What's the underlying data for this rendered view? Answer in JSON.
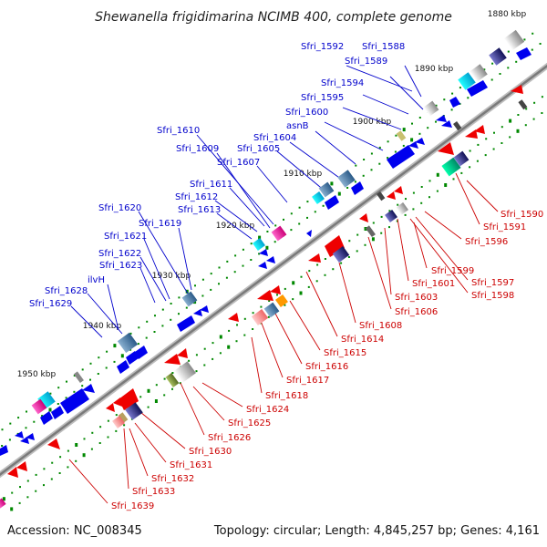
{
  "title": "Shewanella frigidimarina NCIMB 400, complete genome",
  "footer": {
    "accession": "Accession: NC_008345",
    "summary": "Topology: circular; Length: 4,845,257 bp; Genes: 4,161"
  },
  "colors": {
    "forward": "#0000ee",
    "reverse": "#ee0000",
    "backbone": "#808080",
    "ticks": "#008800",
    "blue_label": "#0000cc",
    "red_label": "#cc0000"
  },
  "kbp_marks": [
    {
      "label": "1880 kbp",
      "pos": 0
    },
    {
      "label": "1890 kbp",
      "pos": 10
    },
    {
      "label": "1900 kbp",
      "pos": 20
    },
    {
      "label": "1910 kbp",
      "pos": 30
    },
    {
      "label": "1920 kbp",
      "pos": 40
    },
    {
      "label": "1930 kbp",
      "pos": 50
    },
    {
      "label": "1940 kbp",
      "pos": 60
    },
    {
      "label": "1950 kbp",
      "pos": 70
    }
  ],
  "forward_labels": [
    {
      "name": "Sfri_1592",
      "pos": 7
    },
    {
      "name": "Sfri_1588",
      "pos": 3
    },
    {
      "name": "Sfri_1589",
      "pos": 5
    },
    {
      "name": "Sfri_1594",
      "pos": 12
    },
    {
      "name": "Sfri_1595",
      "pos": 14
    },
    {
      "name": "Sfri_1600",
      "pos": 17
    },
    {
      "name": "asnB",
      "pos": 18
    },
    {
      "name": "Sfri_1604",
      "pos": 26
    },
    {
      "name": "Sfri_1605",
      "pos": 29
    },
    {
      "name": "Sfri_1610",
      "pos": 28
    },
    {
      "name": "Sfri_1609",
      "pos": 30
    },
    {
      "name": "Sfri_1607",
      "pos": 32
    },
    {
      "name": "Sfri_1611",
      "pos": 36
    },
    {
      "name": "Sfri_1612",
      "pos": 37
    },
    {
      "name": "Sfri_1613",
      "pos": 38
    },
    {
      "name": "Sfri_1620",
      "pos": 45
    },
    {
      "name": "Sfri_1619",
      "pos": 46
    },
    {
      "name": "Sfri_1621",
      "pos": 50
    },
    {
      "name": "Sfri_1622",
      "pos": 52
    },
    {
      "name": "Sfri_1623",
      "pos": 53
    },
    {
      "name": "Sfri_1628",
      "pos": 57
    },
    {
      "name": "ilvH",
      "pos": 59
    },
    {
      "name": "Sfri_1629",
      "pos": 60
    }
  ],
  "reverse_labels": [
    {
      "name": "Sfri_1590",
      "pos": 9
    },
    {
      "name": "Sfri_1591",
      "pos": 11
    },
    {
      "name": "Sfri_1596",
      "pos": 16
    },
    {
      "name": "Sfri_1599",
      "pos": 21
    },
    {
      "name": "Sfri_1597",
      "pos": 19
    },
    {
      "name": "Sfri_1598",
      "pos": 20
    },
    {
      "name": "Sfri_1601",
      "pos": 23
    },
    {
      "name": "Sfri_1603",
      "pos": 25
    },
    {
      "name": "Sfri_1606",
      "pos": 31
    },
    {
      "name": "Sfri_1608",
      "pos": 33
    },
    {
      "name": "Sfri_1614",
      "pos": 40
    },
    {
      "name": "Sfri_1615",
      "pos": 42
    },
    {
      "name": "Sfri_1616",
      "pos": 44
    },
    {
      "name": "Sfri_1617",
      "pos": 45
    },
    {
      "name": "Sfri_1618",
      "pos": 47
    },
    {
      "name": "Sfri_1624",
      "pos": 54
    },
    {
      "name": "Sfri_1625",
      "pos": 56
    },
    {
      "name": "Sfri_1626",
      "pos": 58
    },
    {
      "name": "Sfri_1630",
      "pos": 63
    },
    {
      "name": "Sfri_1631",
      "pos": 64
    },
    {
      "name": "Sfri_1632",
      "pos": 65
    },
    {
      "name": "Sfri_1633",
      "pos": 66
    },
    {
      "name": "Sfri_1639",
      "pos": 70
    }
  ]
}
